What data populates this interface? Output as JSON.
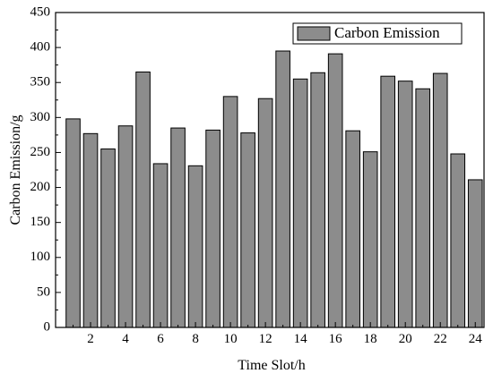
{
  "chart_data": {
    "type": "bar",
    "xlabel": "Time Slot/h",
    "ylabel": "Carbon Emission/g",
    "ylim": [
      0,
      450
    ],
    "yticks": [
      0,
      50,
      100,
      150,
      200,
      250,
      300,
      350,
      400,
      450
    ],
    "xticks": [
      2,
      4,
      6,
      8,
      10,
      12,
      14,
      16,
      18,
      20,
      22,
      24
    ],
    "xlim": [
      0,
      24.5
    ],
    "grid": false,
    "legend_position": "top-right",
    "bar_color": "#8c8c8c",
    "series": [
      {
        "name": "Carbon Emission",
        "x": [
          1,
          2,
          3,
          4,
          5,
          6,
          7,
          8,
          9,
          10,
          11,
          12,
          13,
          14,
          15,
          16,
          17,
          18,
          19,
          20,
          21,
          22,
          23,
          24
        ],
        "values": [
          298,
          277,
          255,
          288,
          365,
          234,
          285,
          231,
          282,
          330,
          278,
          327,
          395,
          355,
          364,
          391,
          281,
          251,
          359,
          352,
          341,
          363,
          248,
          211
        ]
      }
    ]
  }
}
